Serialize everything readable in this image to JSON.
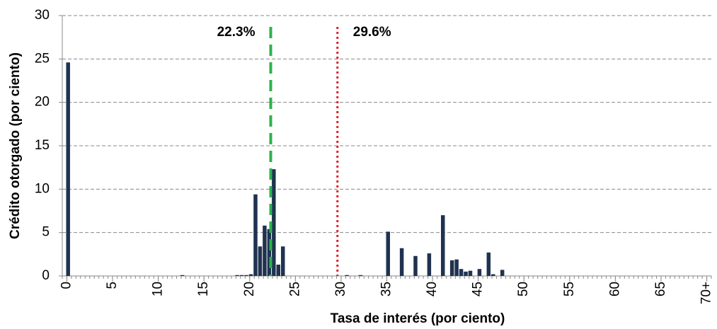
{
  "chart_data": {
    "type": "bar",
    "x_label": "Tasa de interés (por ciento)",
    "y_label": "Crédito otorgado (por ciento)",
    "x": [
      0,
      12.5,
      18.5,
      19,
      19.5,
      20,
      20.5,
      21,
      21.5,
      22,
      22.5,
      23,
      23.5,
      30.5,
      32,
      35,
      36.5,
      38,
      39.5,
      41,
      42,
      42.5,
      43,
      43.5,
      44,
      45,
      46,
      46.5,
      47.5
    ],
    "values": [
      24.6,
      0.1,
      0.1,
      0.1,
      0.1,
      0.2,
      9.4,
      3.4,
      5.8,
      5.4,
      12.3,
      1.3,
      3.4,
      0.1,
      0.1,
      5.1,
      3.2,
      2.3,
      2.6,
      7.0,
      1.8,
      1.9,
      0.8,
      0.5,
      0.6,
      0.8,
      2.7,
      0.2,
      0.7
    ],
    "bin_width": 0.5,
    "color": "#1f3350",
    "xlim": [
      -0.5,
      70.5
    ],
    "xticks": [
      0,
      5,
      10,
      15,
      20,
      25,
      30,
      35,
      40,
      45,
      50,
      55,
      60,
      65,
      {
        "value": 70,
        "label": "70+"
      }
    ],
    "ylim": [
      0,
      30
    ],
    "yticks": [
      0,
      5,
      10,
      15,
      20,
      25,
      30
    ],
    "grid": true,
    "reference_lines": [
      {
        "value": 22.3,
        "label": "22.3%",
        "color": "#2db34a",
        "style": "dashed"
      },
      {
        "value": 29.6,
        "label": "29.6%",
        "color": "#e0202a",
        "style": "dotted"
      }
    ]
  }
}
